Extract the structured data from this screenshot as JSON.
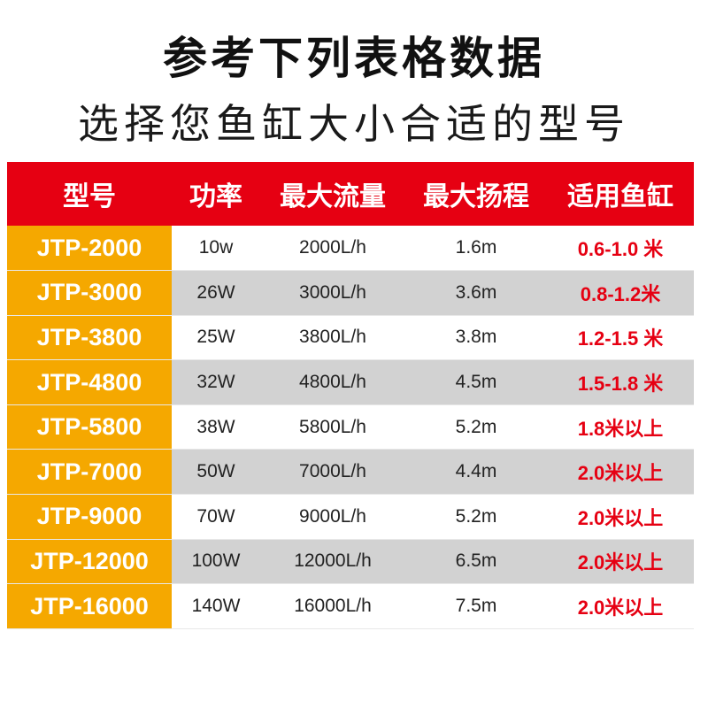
{
  "heading": {
    "line1": "参考下列表格数据",
    "line2": "选择您鱼缸大小合适的型号"
  },
  "table": {
    "headers": [
      "型号",
      "功率",
      "最大流量",
      "最大扬程",
      "适用鱼缸"
    ],
    "rows": [
      {
        "model": "JTP-2000",
        "power": "10w",
        "flow": "2000L/h",
        "lift": "1.6m",
        "tank": "0.6-1.0 米"
      },
      {
        "model": "JTP-3000",
        "power": "26W",
        "flow": "3000L/h",
        "lift": "3.6m",
        "tank": "0.8-1.2米"
      },
      {
        "model": "JTP-3800",
        "power": "25W",
        "flow": "3800L/h",
        "lift": "3.8m",
        "tank": "1.2-1.5 米"
      },
      {
        "model": "JTP-4800",
        "power": "32W",
        "flow": "4800L/h",
        "lift": "4.5m",
        "tank": "1.5-1.8 米"
      },
      {
        "model": "JTP-5800",
        "power": "38W",
        "flow": "5800L/h",
        "lift": "5.2m",
        "tank": "1.8米以上"
      },
      {
        "model": "JTP-7000",
        "power": "50W",
        "flow": "7000L/h",
        "lift": "4.4m",
        "tank": "2.0米以上"
      },
      {
        "model": "JTP-9000",
        "power": "70W",
        "flow": "9000L/h",
        "lift": "5.2m",
        "tank": "2.0米以上"
      },
      {
        "model": "JTP-12000",
        "power": "100W",
        "flow": "12000L/h",
        "lift": "6.5m",
        "tank": "2.0米以上"
      },
      {
        "model": "JTP-16000",
        "power": "140W",
        "flow": "16000L/h",
        "lift": "7.5m",
        "tank": "2.0米以上"
      }
    ]
  },
  "colors": {
    "header_bg": "#e60012",
    "model_bg": "#f5a800",
    "alt_row_bg": "#d2d2d2",
    "tank_text": "#e60012"
  }
}
